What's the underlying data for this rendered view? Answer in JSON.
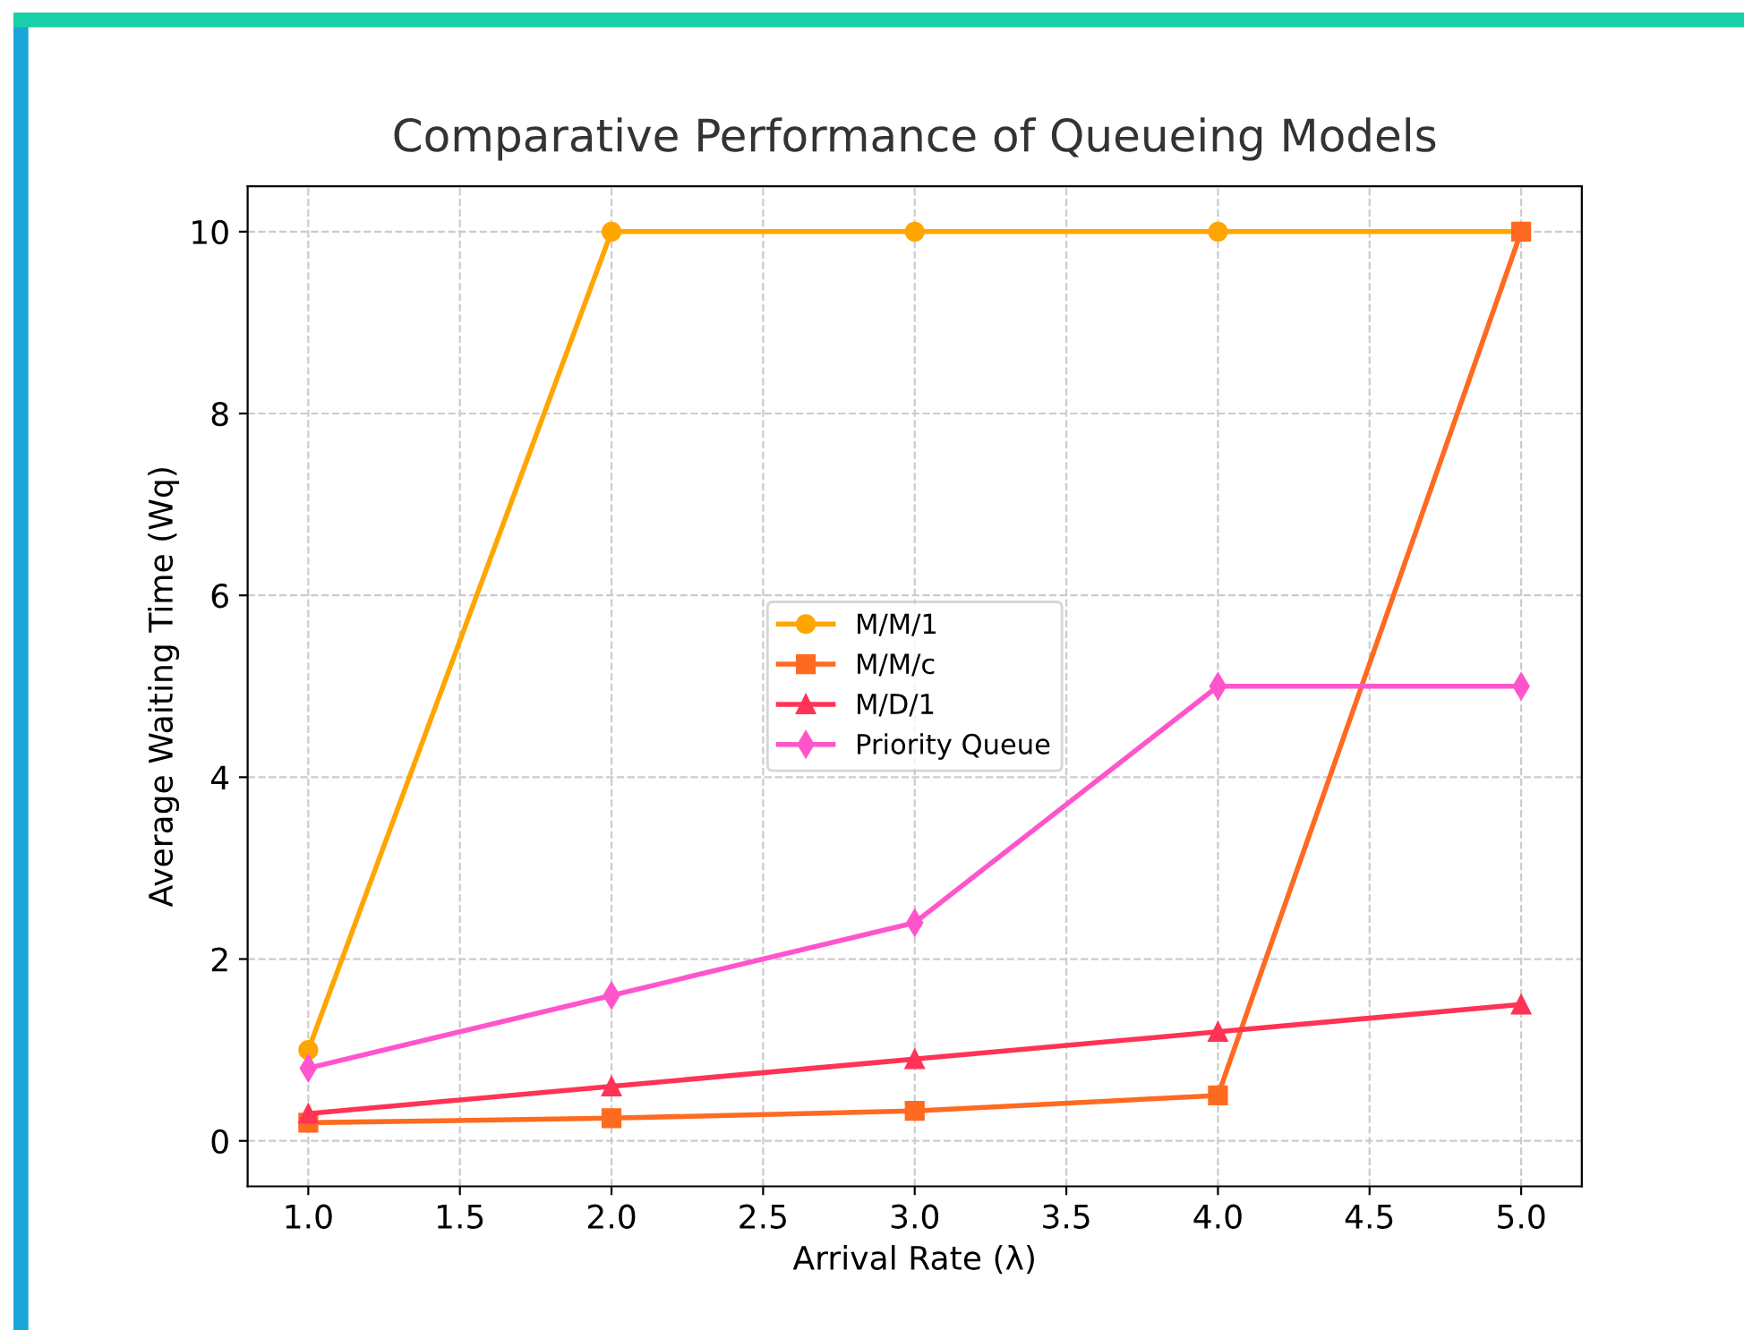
{
  "chart_data": {
    "type": "line",
    "title": "Comparative Performance of Queueing Models",
    "xlabel": "Arrival Rate (λ)",
    "ylabel": "Average Waiting Time (Wq)",
    "x": [
      1,
      2,
      3,
      4,
      5
    ],
    "series": [
      {
        "name": "M/M/1",
        "color": "#ffa500",
        "marker": "circle",
        "values": [
          1,
          10,
          10,
          10,
          10
        ]
      },
      {
        "name": "M/M/c",
        "color": "#ff6a21",
        "marker": "square",
        "values": [
          0.2,
          0.25,
          0.33,
          0.5,
          10
        ]
      },
      {
        "name": "M/D/1",
        "color": "#ff3355",
        "marker": "triangle",
        "values": [
          0.3,
          0.6,
          0.9,
          1.2,
          1.5
        ]
      },
      {
        "name": "Priority Queue",
        "color": "#ff55cc",
        "marker": "diamond",
        "values": [
          0.8,
          1.6,
          2.4,
          5,
          5
        ]
      }
    ],
    "xlim": [
      0.8,
      5.2
    ],
    "ylim": [
      -0.5,
      10.5
    ],
    "xticks": [
      {
        "value": 1,
        "label": "1.0"
      },
      {
        "value": 1.5,
        "label": "1.5"
      },
      {
        "value": 2,
        "label": "2.0"
      },
      {
        "value": 2.5,
        "label": "2.5"
      },
      {
        "value": 3,
        "label": "3.0"
      },
      {
        "value": 3.5,
        "label": "3.5"
      },
      {
        "value": 4,
        "label": "4.0"
      },
      {
        "value": 4.5,
        "label": "4.5"
      },
      {
        "value": 5,
        "label": "5.0"
      }
    ],
    "yticks": [
      0,
      2,
      4,
      6,
      8,
      10
    ],
    "grid": true,
    "legend": "center",
    "line_style": "solid"
  }
}
